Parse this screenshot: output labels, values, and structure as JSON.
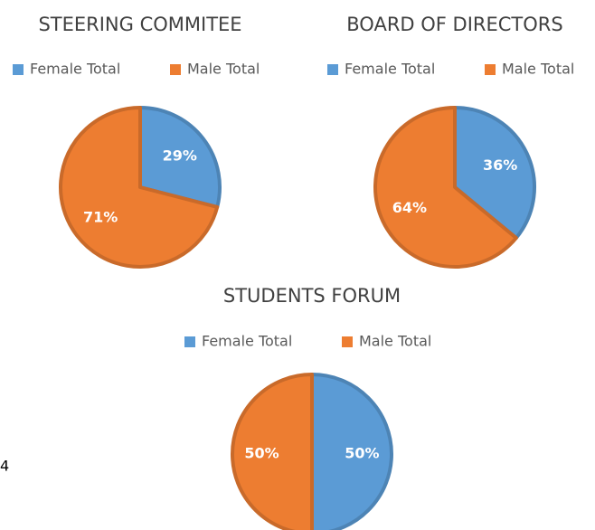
{
  "page_text": "4",
  "chart_data": [
    {
      "type": "pie",
      "title": "STEERING COMMITEE",
      "categories": [
        "Female Total",
        "Male Total"
      ],
      "values": [
        29,
        71
      ],
      "value_labels": [
        "29%",
        "71%"
      ],
      "colors": [
        "#5b9bd5",
        "#ed7d31"
      ]
    },
    {
      "type": "pie",
      "title": "BOARD OF DIRECTORS",
      "categories": [
        "Female Total",
        "Male Total"
      ],
      "values": [
        36,
        64
      ],
      "value_labels": [
        "36%",
        "64%"
      ],
      "colors": [
        "#5b9bd5",
        "#ed7d31"
      ]
    },
    {
      "type": "pie",
      "title": "STUDENTS FORUM",
      "categories": [
        "Female Total",
        "Male Total"
      ],
      "values": [
        50,
        50
      ],
      "value_labels": [
        "50%",
        "50%"
      ],
      "colors": [
        "#5b9bd5",
        "#ed7d31"
      ]
    }
  ]
}
